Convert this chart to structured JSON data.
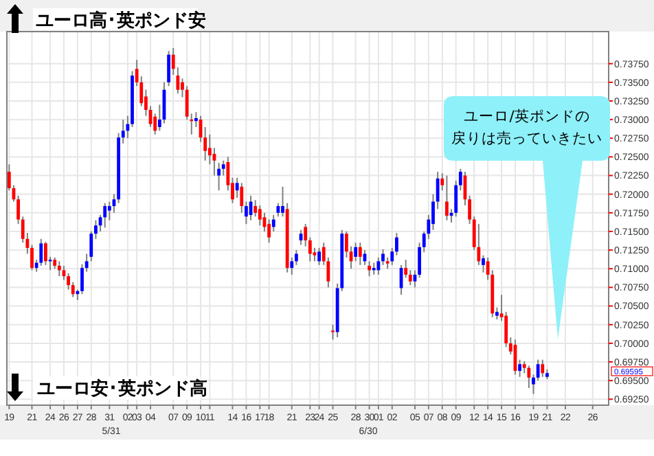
{
  "chart_data": {
    "type": "candlestick",
    "categories": [
      "19",
      null,
      null,
      null,
      null,
      "21",
      null,
      null,
      null,
      "24",
      null,
      null,
      "26",
      null,
      null,
      "27",
      null,
      null,
      "28",
      null,
      null,
      null,
      "31",
      null,
      null,
      null,
      "02",
      null,
      "03",
      null,
      null,
      "04",
      null,
      null,
      null,
      null,
      "07",
      null,
      null,
      "09",
      null,
      null,
      "10",
      null,
      "11",
      null,
      null,
      null,
      null,
      "14",
      null,
      null,
      "16",
      null,
      null,
      "17",
      null,
      "18",
      null,
      null,
      null,
      null,
      "21",
      null,
      null,
      null,
      "23",
      null,
      "24",
      null,
      null,
      "25",
      null,
      null,
      null,
      null,
      "28",
      null,
      null,
      "30",
      null,
      "01",
      null,
      null,
      "02",
      null,
      null,
      null,
      null,
      "05",
      null,
      null,
      "07",
      null,
      null,
      "08",
      null,
      null,
      "09",
      null,
      null,
      null,
      "12",
      null,
      null,
      "14",
      null,
      null,
      "15",
      null,
      null,
      "16",
      null,
      null,
      null,
      "19",
      null,
      null,
      "21",
      null,
      null,
      null,
      "22",
      null,
      null,
      null,
      null,
      null,
      "26",
      null,
      null,
      null
    ],
    "ohlc": [
      [
        0.723,
        0.724,
        0.7205,
        0.7208
      ],
      [
        0.7208,
        0.7212,
        0.719,
        0.7193
      ],
      [
        0.7193,
        0.7198,
        0.716,
        0.7166
      ],
      [
        0.7166,
        0.717,
        0.7135,
        0.714
      ],
      [
        0.714,
        0.7148,
        0.712,
        0.7128
      ],
      [
        0.7128,
        0.7132,
        0.7098,
        0.7101
      ],
      [
        0.7101,
        0.7112,
        0.7096,
        0.7108
      ],
      [
        0.7108,
        0.714,
        0.7104,
        0.7134
      ],
      [
        0.7134,
        0.7136,
        0.7105,
        0.711
      ],
      [
        0.711,
        0.7116,
        0.7098,
        0.7112
      ],
      [
        0.7112,
        0.7115,
        0.71,
        0.7104
      ],
      [
        0.7104,
        0.711,
        0.709,
        0.7098
      ],
      [
        0.7098,
        0.7104,
        0.7085,
        0.709
      ],
      [
        0.709,
        0.7094,
        0.7072,
        0.7078
      ],
      [
        0.7078,
        0.7082,
        0.7062,
        0.7066
      ],
      [
        0.7066,
        0.7072,
        0.7058,
        0.707
      ],
      [
        0.707,
        0.7106,
        0.7066,
        0.7101
      ],
      [
        0.7101,
        0.712,
        0.7096,
        0.711
      ],
      [
        0.7116,
        0.715,
        0.711,
        0.7147
      ],
      [
        0.7147,
        0.7165,
        0.714,
        0.7158
      ],
      [
        0.7158,
        0.7172,
        0.715,
        0.7169
      ],
      [
        0.7169,
        0.7188,
        0.7155,
        0.7184
      ],
      [
        0.7178,
        0.719,
        0.7165,
        0.7184
      ],
      [
        0.7184,
        0.72,
        0.7175,
        0.7193
      ],
      [
        0.7193,
        0.7282,
        0.7188,
        0.7276
      ],
      [
        0.7276,
        0.73,
        0.7268,
        0.7285
      ],
      [
        0.7285,
        0.7305,
        0.7275,
        0.7294
      ],
      [
        0.7294,
        0.7365,
        0.729,
        0.7359
      ],
      [
        0.7368,
        0.738,
        0.7345,
        0.735
      ],
      [
        0.735,
        0.7358,
        0.7318,
        0.7322
      ],
      [
        0.7331,
        0.734,
        0.7305,
        0.7313
      ],
      [
        0.7313,
        0.7318,
        0.729,
        0.7294
      ],
      [
        0.7304,
        0.7308,
        0.728,
        0.7285
      ],
      [
        0.729,
        0.732,
        0.7285,
        0.73
      ],
      [
        0.73,
        0.735,
        0.7295,
        0.734
      ],
      [
        0.735,
        0.7392,
        0.7345,
        0.7387
      ],
      [
        0.7387,
        0.7396,
        0.736,
        0.7368
      ],
      [
        0.7359,
        0.737,
        0.7335,
        0.734
      ],
      [
        0.735,
        0.7355,
        0.733,
        0.734
      ],
      [
        0.734,
        0.7345,
        0.73,
        0.7304
      ],
      [
        0.73,
        0.7308,
        0.728,
        0.7298
      ],
      [
        0.7298,
        0.731,
        0.729,
        0.7302
      ],
      [
        0.73,
        0.7305,
        0.727,
        0.7276
      ],
      [
        0.7276,
        0.729,
        0.7245,
        0.7258
      ],
      [
        0.7262,
        0.728,
        0.724,
        0.7252
      ],
      [
        0.7254,
        0.7262,
        0.7225,
        0.7245
      ],
      [
        0.7225,
        0.7242,
        0.7205,
        0.7234
      ],
      [
        0.7234,
        0.7245,
        0.7225,
        0.724
      ],
      [
        0.7243,
        0.725,
        0.7205,
        0.7212
      ],
      [
        0.7215,
        0.7222,
        0.7188,
        0.7193
      ],
      [
        0.7205,
        0.7222,
        0.7195,
        0.7215
      ],
      [
        0.721,
        0.7215,
        0.7175,
        0.7184
      ],
      [
        0.717,
        0.719,
        0.716,
        0.7184
      ],
      [
        0.7172,
        0.7198,
        0.7165,
        0.719
      ],
      [
        0.7184,
        0.7192,
        0.717,
        0.7175
      ],
      [
        0.718,
        0.7185,
        0.7158,
        0.7166
      ],
      [
        0.7169,
        0.7175,
        0.715,
        0.7156
      ],
      [
        0.716,
        0.7166,
        0.7135,
        0.7142
      ],
      [
        0.7156,
        0.7172,
        0.715,
        0.7166
      ],
      [
        0.7175,
        0.7188,
        0.717,
        0.7184
      ],
      [
        0.7175,
        0.721,
        0.717,
        0.7184
      ],
      [
        0.718,
        0.7188,
        0.7095,
        0.7101
      ],
      [
        0.7101,
        0.7115,
        0.7092,
        0.711
      ],
      [
        0.711,
        0.7125,
        0.7105,
        0.712
      ],
      [
        0.7138,
        0.7152,
        0.7132,
        0.7147
      ],
      [
        0.7156,
        0.716,
        0.713,
        0.7138
      ],
      [
        0.7138,
        0.7142,
        0.711,
        0.712
      ],
      [
        0.7122,
        0.7128,
        0.711,
        0.7118
      ],
      [
        0.711,
        0.7128,
        0.7105,
        0.7123
      ],
      [
        0.7129,
        0.7135,
        0.7105,
        0.711
      ],
      [
        0.711,
        0.7115,
        0.7075,
        0.7083
      ],
      [
        0.7017,
        0.7025,
        0.7005,
        0.7015
      ],
      [
        0.7015,
        0.708,
        0.7008,
        0.7074
      ],
      [
        0.7074,
        0.7152,
        0.707,
        0.7147
      ],
      [
        0.7147,
        0.715,
        0.7115,
        0.7123
      ],
      [
        0.7123,
        0.713,
        0.71,
        0.711
      ],
      [
        0.7116,
        0.7135,
        0.711,
        0.7129
      ],
      [
        0.7129,
        0.7135,
        0.7105,
        0.7116
      ],
      [
        0.711,
        0.7125,
        0.7105,
        0.712
      ],
      [
        0.7104,
        0.711,
        0.709,
        0.7098
      ],
      [
        0.7098,
        0.7108,
        0.7092,
        0.7101
      ],
      [
        0.7098,
        0.7115,
        0.7092,
        0.711
      ],
      [
        0.711,
        0.7126,
        0.7105,
        0.712
      ],
      [
        0.711,
        0.7115,
        0.71,
        0.7107
      ],
      [
        0.711,
        0.7128,
        0.7105,
        0.7123
      ],
      [
        0.7123,
        0.7148,
        0.7118,
        0.7142
      ],
      [
        0.7074,
        0.7105,
        0.7065,
        0.7101
      ],
      [
        0.7101,
        0.7112,
        0.7088,
        0.7092
      ],
      [
        0.7092,
        0.7098,
        0.7078,
        0.7083
      ],
      [
        0.7083,
        0.7098,
        0.7075,
        0.7092
      ],
      [
        0.7092,
        0.7135,
        0.7088,
        0.7129
      ],
      [
        0.7129,
        0.715,
        0.7122,
        0.7147
      ],
      [
        0.7147,
        0.7172,
        0.714,
        0.7166
      ],
      [
        0.716,
        0.72,
        0.7152,
        0.719
      ],
      [
        0.719,
        0.723,
        0.718,
        0.7221
      ],
      [
        0.7221,
        0.7228,
        0.7205,
        0.7212
      ],
      [
        0.719,
        0.7225,
        0.7165,
        0.7171
      ],
      [
        0.7171,
        0.718,
        0.7162,
        0.7175
      ],
      [
        0.7175,
        0.7218,
        0.717,
        0.7212
      ],
      [
        0.7212,
        0.7234,
        0.7205,
        0.723
      ],
      [
        0.7225,
        0.723,
        0.7185,
        0.7193
      ],
      [
        0.7193,
        0.7198,
        0.716,
        0.7166
      ],
      [
        0.7166,
        0.717,
        0.7125,
        0.7129
      ],
      [
        0.7129,
        0.716,
        0.7105,
        0.711
      ],
      [
        0.7105,
        0.7118,
        0.7095,
        0.7114
      ],
      [
        0.711,
        0.7115,
        0.7085,
        0.7092
      ],
      [
        0.7092,
        0.7098,
        0.7035,
        0.704
      ],
      [
        0.7037,
        0.7048,
        0.7032,
        0.7042
      ],
      [
        0.704,
        0.7065,
        0.703,
        0.7035
      ],
      [
        0.7037,
        0.7042,
        0.6995,
        0.7
      ],
      [
        0.7,
        0.7008,
        0.6985,
        0.6989
      ],
      [
        0.6998,
        0.7005,
        0.6958,
        0.6963
      ],
      [
        0.6963,
        0.6978,
        0.6955,
        0.6972
      ],
      [
        0.6972,
        0.6976,
        0.696,
        0.6967
      ],
      [
        0.6967,
        0.697,
        0.694,
        0.6954
      ],
      [
        0.6945,
        0.6958,
        0.6932,
        0.6954
      ],
      [
        0.6954,
        0.6978,
        0.695,
        0.6972
      ],
      [
        0.6972,
        0.6978,
        0.6955,
        0.696
      ],
      [
        0.6955,
        0.6965,
        0.6952,
        0.696
      ],
      null,
      null,
      null,
      null,
      null,
      null,
      null,
      null,
      null,
      null,
      null,
      null,
      null
    ],
    "ylim": [
      0.6917,
      0.7418
    ],
    "yticks": [
      {
        "value": 0.6925,
        "label": "0.69250"
      },
      {
        "value": 0.695,
        "label": "0.69500"
      },
      {
        "value": 0.6975,
        "label": "0.69750"
      },
      {
        "value": 0.7,
        "label": "0.70000"
      },
      {
        "value": 0.7025,
        "label": "0.70250"
      },
      {
        "value": 0.705,
        "label": "0.70500"
      },
      {
        "value": 0.7075,
        "label": "0.70750"
      },
      {
        "value": 0.71,
        "label": "0.71000"
      },
      {
        "value": 0.7125,
        "label": "0.71250"
      },
      {
        "value": 0.715,
        "label": "0.71500"
      },
      {
        "value": 0.7175,
        "label": "0.71750"
      },
      {
        "value": 0.72,
        "label": "0.72000"
      },
      {
        "value": 0.7225,
        "label": "0.72250"
      },
      {
        "value": 0.725,
        "label": "0.72500"
      },
      {
        "value": 0.7275,
        "label": "0.72750"
      },
      {
        "value": 0.73,
        "label": "0.73000"
      },
      {
        "value": 0.7325,
        "label": "0.73250"
      },
      {
        "value": 0.735,
        "label": "0.73500"
      },
      {
        "value": 0.7375,
        "label": "0.73750"
      }
    ],
    "grid": true,
    "annotations": [
      "ユーロ高･英ポンド安",
      "ユーロ安･英ポンド高",
      "ユーロ/英ポンドの戻りは売っていきたい",
      "5/31",
      "6/30",
      "0.69595"
    ]
  }
}
